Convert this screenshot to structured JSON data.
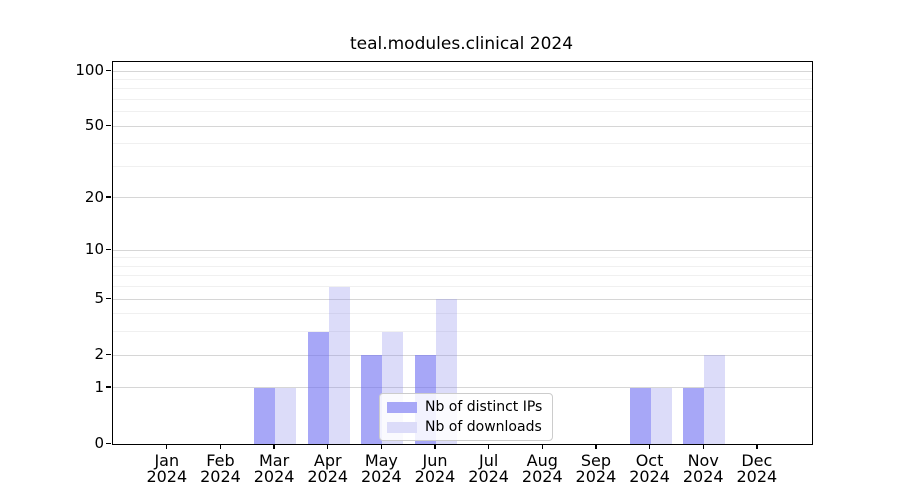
{
  "title": "teal.modules.clinical 2024",
  "chart_data": {
    "type": "bar",
    "title": "teal.modules.clinical 2024",
    "categories": [
      "Jan",
      "Feb",
      "Mar",
      "Apr",
      "May",
      "Jun",
      "Jul",
      "Aug",
      "Sep",
      "Oct",
      "Nov",
      "Dec"
    ],
    "year_label": "2024",
    "series": [
      {
        "name": "Nb of distinct IPs",
        "color": "#a7a7f7",
        "fill": "rgba(113,113,242,0.62)",
        "values": [
          0,
          0,
          1,
          3,
          2,
          2,
          0,
          0,
          0,
          1,
          1,
          0
        ]
      },
      {
        "name": "Nb of downloads",
        "color": "#dcdcf9",
        "fill": "rgba(140,140,235,0.30)",
        "values": [
          0,
          0,
          1,
          6,
          3,
          5,
          0,
          0,
          0,
          1,
          2,
          0
        ]
      }
    ],
    "xlabel": "",
    "ylabel": "",
    "yscale": "log1p",
    "ylim": [
      0,
      113
    ],
    "yticks": [
      0,
      1,
      2,
      5,
      10,
      20,
      50,
      100
    ],
    "yticks_minor": [
      3,
      4,
      6,
      7,
      8,
      9,
      30,
      40,
      60,
      70,
      80,
      90
    ],
    "grid": true,
    "legend_position": "lower right inside"
  },
  "colors": {
    "grid_major": "#d6d6d6",
    "grid_minor": "#f0f0f0",
    "axis": "#000000",
    "legend_border": "#cccccc",
    "legend_bg": "rgba(255,255,255,0.85)"
  }
}
